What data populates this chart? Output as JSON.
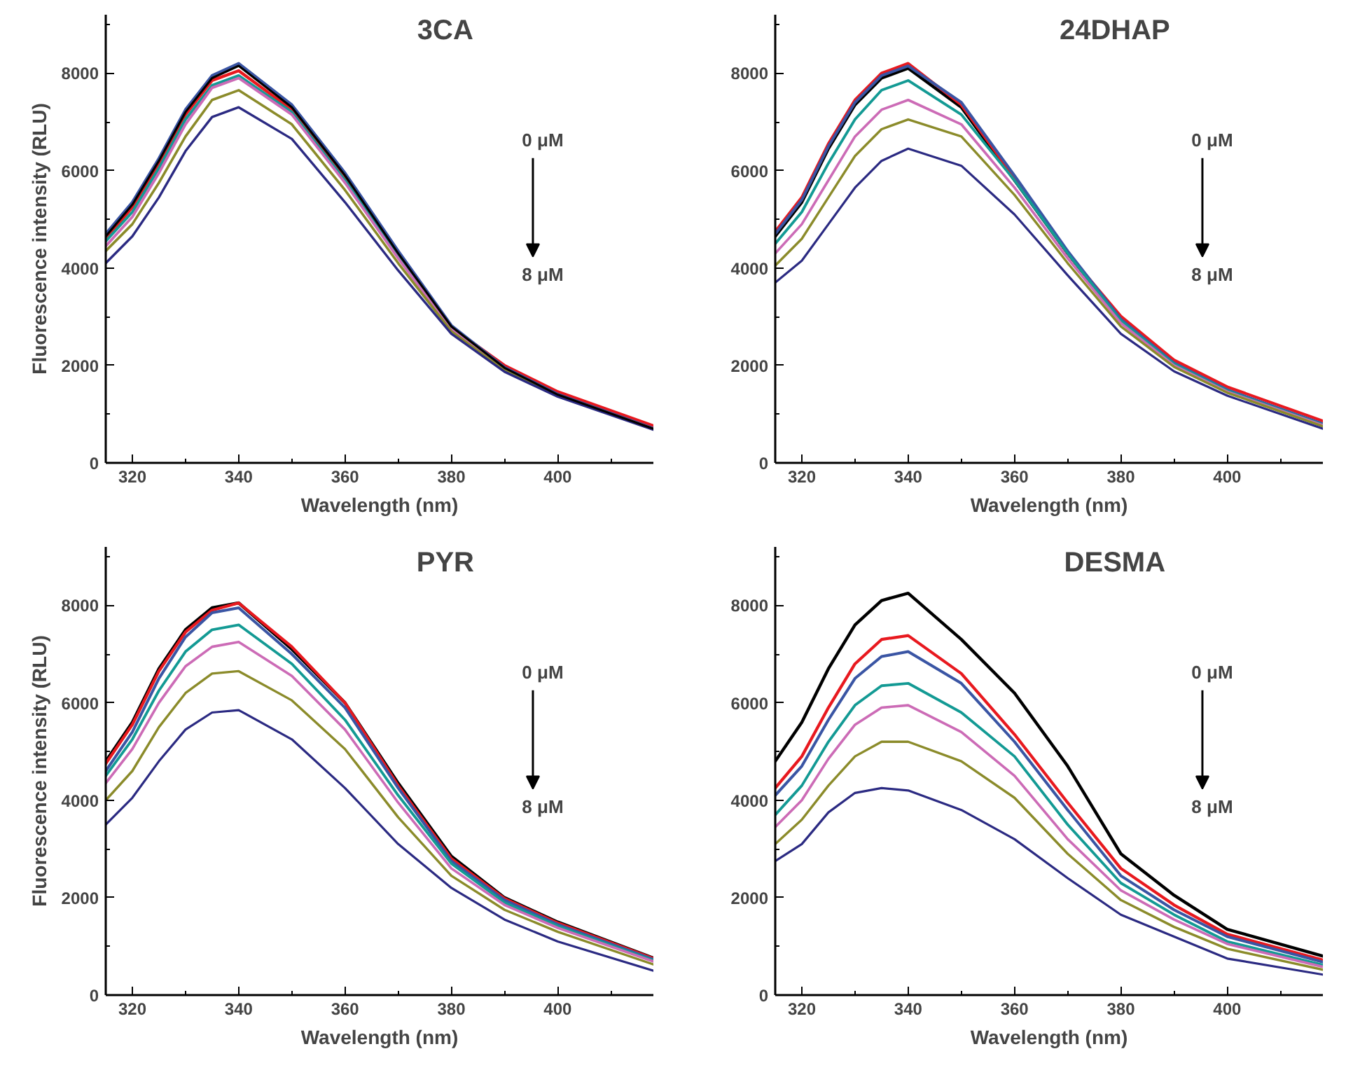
{
  "chart_data": [
    {
      "type": "line",
      "title": "3CA",
      "xlabel": "Wavelength (nm)",
      "ylabel": "Fluorescence intensity (RLU)",
      "annotations": [
        "0 μM",
        "8 μM"
      ],
      "x": [
        315,
        320,
        325,
        330,
        335,
        340,
        350,
        360,
        370,
        380,
        390,
        400,
        418
      ],
      "xlim": [
        315,
        418
      ],
      "ylim": [
        0,
        9200
      ],
      "xticks": [
        320,
        {
          "value": 330,
          "label": null
        },
        340,
        {
          "value": 350,
          "label": null
        },
        360,
        {
          "value": 370,
          "label": null
        },
        380,
        {
          "value": 390,
          "label": null
        },
        400,
        {
          "value": 410,
          "label": null
        }
      ],
      "yticks": [
        0,
        {
          "value": 1000,
          "label": null
        },
        2000,
        {
          "value": 3000,
          "label": null
        },
        4000,
        {
          "value": 5000,
          "label": null
        },
        6000,
        {
          "value": 7000,
          "label": null
        },
        8000,
        {
          "value": 9000,
          "label": null
        }
      ],
      "series": [
        {
          "color": "#e8191f",
          "values": [
            4600,
            5250,
            6150,
            7150,
            7850,
            8050,
            7250,
            5850,
            4250,
            2780,
            2000,
            1460,
            760
          ]
        },
        {
          "color": "#3a55a4",
          "values": [
            4700,
            5350,
            6250,
            7250,
            7950,
            8200,
            7350,
            5950,
            4350,
            2820,
            1960,
            1410,
            710
          ]
        },
        {
          "color": "#139a94",
          "values": [
            4550,
            5150,
            6050,
            7050,
            7750,
            7950,
            7200,
            5800,
            4250,
            2760,
            null,
            null,
            null
          ]
        },
        {
          "color": "#cc6bb6",
          "values": [
            4450,
            5050,
            5950,
            6950,
            7700,
            7900,
            7150,
            5750,
            4200,
            2740,
            1920,
            1390,
            700
          ]
        },
        {
          "color": "#8b8b2a",
          "values": [
            4350,
            4900,
            5750,
            6700,
            7450,
            7650,
            6950,
            5600,
            4100,
            2700,
            1900,
            1380,
            690
          ]
        },
        {
          "color": "#2b2a82",
          "values": [
            4100,
            4650,
            5450,
            6400,
            7100,
            7300,
            6650,
            5350,
            3950,
            2650,
            1870,
            1360,
            680
          ]
        },
        {
          "color": "#000000",
          "values": [
            4650,
            5300,
            6200,
            7200,
            7900,
            8150,
            7300,
            5900,
            4300,
            2800,
            1950,
            1400,
            700
          ]
        }
      ]
    },
    {
      "type": "line",
      "title": "24DHAP",
      "xlabel": "Wavelength (nm)",
      "annotations": [
        "0 μM",
        "8 μM"
      ],
      "x": [
        315,
        320,
        325,
        330,
        335,
        340,
        350,
        360,
        370,
        380,
        390,
        400,
        418
      ],
      "xlim": [
        315,
        418
      ],
      "ylim": [
        0,
        9200
      ],
      "xticks": [
        320,
        {
          "value": 330,
          "label": null
        },
        340,
        {
          "value": 350,
          "label": null
        },
        360,
        {
          "value": 370,
          "label": null
        },
        380,
        {
          "value": 390,
          "label": null
        },
        400,
        {
          "value": 410,
          "label": null
        }
      ],
      "yticks": [
        0,
        {
          "value": 1000,
          "label": null
        },
        2000,
        {
          "value": 3000,
          "label": null
        },
        4000,
        {
          "value": 5000,
          "label": null
        },
        6000,
        {
          "value": 7000,
          "label": null
        },
        8000,
        {
          "value": 9000,
          "label": null
        }
      ],
      "series": [
        {
          "color": "#000000",
          "values": [
            4650,
            5350,
            6450,
            7350,
            7900,
            8100,
            7300,
            5800,
            4300,
            2930,
            2040,
            1490,
            790
          ]
        },
        {
          "color": "#e8191f",
          "values": [
            4750,
            5450,
            6550,
            7450,
            8000,
            8200,
            7350,
            5850,
            4300,
            3010,
            2110,
            1560,
            860
          ]
        },
        {
          "color": "#3a55a4",
          "values": [
            4700,
            5400,
            6500,
            7400,
            7950,
            8150,
            7400,
            5900,
            4350,
            2950,
            2050,
            1500,
            800
          ]
        },
        {
          "color": "#139a94",
          "values": [
            4500,
            5150,
            6150,
            7050,
            7650,
            7850,
            7150,
            5800,
            4300,
            2920,
            2030,
            1480,
            780
          ]
        },
        {
          "color": "#cc6bb6",
          "values": [
            4300,
            4900,
            5800,
            6700,
            7250,
            7450,
            6950,
            5650,
            4200,
            2870,
            2000,
            1460,
            770
          ]
        },
        {
          "color": "#8b8b2a",
          "values": [
            4050,
            4600,
            5450,
            6300,
            6850,
            7050,
            6700,
            5500,
            4100,
            2800,
            1970,
            1440,
            750
          ]
        },
        {
          "color": "#2b2a82",
          "values": [
            3700,
            4150,
            4900,
            5650,
            6200,
            6450,
            6100,
            5100,
            3850,
            2650,
            1880,
            1380,
            700
          ]
        }
      ]
    },
    {
      "type": "line",
      "title": "PYR",
      "xlabel": "Wavelength (nm)",
      "ylabel": "Fluorescence intensity (RLU)",
      "annotations": [
        "0 μM",
        "8 μM"
      ],
      "x": [
        315,
        320,
        325,
        330,
        335,
        340,
        350,
        360,
        370,
        380,
        390,
        400,
        418
      ],
      "xlim": [
        315,
        418
      ],
      "ylim": [
        0,
        9200
      ],
      "xticks": [
        320,
        {
          "value": 330,
          "label": null
        },
        340,
        {
          "value": 350,
          "label": null
        },
        360,
        {
          "value": 370,
          "label": null
        },
        380,
        {
          "value": 390,
          "label": null
        },
        400,
        {
          "value": 410,
          "label": null
        }
      ],
      "yticks": [
        0,
        {
          "value": 1000,
          "label": null
        },
        2000,
        {
          "value": 3000,
          "label": null
        },
        4000,
        {
          "value": 5000,
          "label": null
        },
        6000,
        {
          "value": 7000,
          "label": null
        },
        8000,
        {
          "value": 9000,
          "label": null
        }
      ],
      "series": [
        {
          "color": "#000000",
          "values": [
            4800,
            5600,
            6700,
            7500,
            7950,
            8050,
            7100,
            6000,
            4350,
            2850,
            2000,
            1500,
            760
          ]
        },
        {
          "color": "#e8191f",
          "values": [
            4750,
            5550,
            6650,
            7450,
            7900,
            8050,
            7150,
            6000,
            4300,
            2800,
            1980,
            1480,
            750
          ]
        },
        {
          "color": "#3a55a4",
          "values": [
            4600,
            5400,
            6500,
            7350,
            7850,
            7950,
            7000,
            5900,
            4250,
            2750,
            1950,
            1450,
            730
          ]
        },
        {
          "color": "#139a94",
          "values": [
            4500,
            5250,
            6250,
            7050,
            7500,
            7600,
            6800,
            5650,
            4100,
            2700,
            1900,
            1420,
            710
          ]
        },
        {
          "color": "#cc6bb6",
          "values": [
            4350,
            5050,
            6000,
            6750,
            7150,
            7250,
            6550,
            5450,
            3950,
            2600,
            1850,
            1380,
            690
          ]
        },
        {
          "color": "#8b8b2a",
          "values": [
            4000,
            4600,
            5500,
            6200,
            6600,
            6650,
            6050,
            5050,
            3650,
            2450,
            1750,
            1300,
            630
          ]
        },
        {
          "color": "#2b2a82",
          "values": [
            3500,
            4050,
            4800,
            5450,
            5800,
            5850,
            5250,
            4250,
            3100,
            2200,
            1550,
            1100,
            500
          ]
        }
      ]
    },
    {
      "type": "line",
      "title": "DESMA",
      "xlabel": "Wavelength (nm)",
      "annotations": [
        "0 μM",
        "8 μM"
      ],
      "x": [
        315,
        320,
        325,
        330,
        335,
        340,
        350,
        360,
        370,
        380,
        390,
        400,
        418
      ],
      "xlim": [
        315,
        418
      ],
      "ylim": [
        0,
        9200
      ],
      "xticks": [
        320,
        {
          "value": 330,
          "label": null
        },
        340,
        {
          "value": 350,
          "label": null
        },
        360,
        {
          "value": 370,
          "label": null
        },
        380,
        {
          "value": 390,
          "label": null
        },
        400,
        {
          "value": 410,
          "label": null
        }
      ],
      "yticks": [
        0,
        {
          "value": 1000,
          "label": null
        },
        2000,
        {
          "value": 3000,
          "label": null
        },
        4000,
        {
          "value": 5000,
          "label": null
        },
        6000,
        {
          "value": 7000,
          "label": null
        },
        8000,
        {
          "value": 9000,
          "label": null
        }
      ],
      "series": [
        {
          "color": "#000000",
          "values": [
            4800,
            5600,
            6700,
            7600,
            8100,
            8250,
            7300,
            6200,
            4700,
            2900,
            2050,
            1350,
            800
          ]
        },
        {
          "color": "#e8191f",
          "values": [
            4250,
            4900,
            5900,
            6800,
            7300,
            7380,
            6600,
            5350,
            3950,
            2600,
            1850,
            1250,
            720
          ]
        },
        {
          "color": "#3a55a4",
          "values": [
            4100,
            4700,
            5650,
            6500,
            6950,
            7050,
            6400,
            5200,
            3800,
            2450,
            1750,
            1200,
            680
          ]
        },
        {
          "color": "#139a94",
          "values": [
            3700,
            4300,
            5200,
            5950,
            6350,
            6400,
            5800,
            4900,
            3500,
            2300,
            1650,
            1100,
            620
          ]
        },
        {
          "color": "#cc6bb6",
          "values": [
            3450,
            4000,
            4850,
            5550,
            5900,
            5950,
            5400,
            4500,
            3200,
            2150,
            1550,
            1050,
            580
          ]
        },
        {
          "color": "#8b8b2a",
          "values": [
            3100,
            3600,
            4300,
            4900,
            5200,
            5200,
            4800,
            4050,
            2900,
            1950,
            1400,
            950,
            520
          ]
        },
        {
          "color": "#2b2a82",
          "values": [
            2750,
            3100,
            3750,
            4150,
            4250,
            4200,
            3800,
            3200,
            2400,
            1650,
            1200,
            750,
            420
          ]
        }
      ]
    }
  ]
}
